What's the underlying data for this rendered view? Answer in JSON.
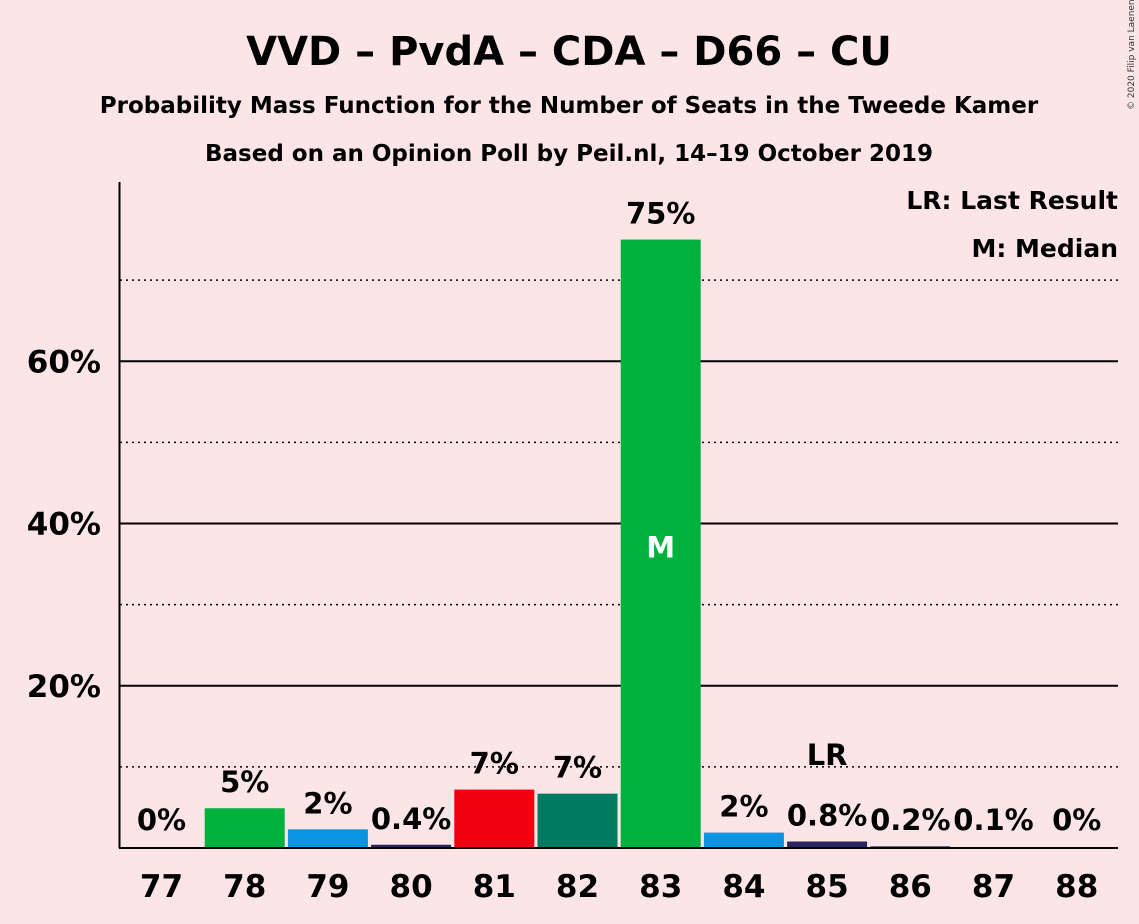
{
  "copyright": "© 2020 Filip van Laenen",
  "chart_data": {
    "type": "bar",
    "title": "VVD – PvdA – CDA – D66 – CU",
    "subtitle": "Probability Mass Function for the Number of Seats in the Tweede Kamer",
    "source_line": "Based on an Opinion Poll by Peil.nl, 14–19 October 2019",
    "categories": [
      "77",
      "78",
      "79",
      "80",
      "81",
      "82",
      "83",
      "84",
      "85",
      "86",
      "87",
      "88"
    ],
    "values": [
      0,
      5,
      2,
      0.4,
      7,
      7,
      75,
      2,
      0.8,
      0.2,
      0.1,
      0
    ],
    "plot_values": [
      0,
      4.9,
      2.3,
      0.4,
      7.2,
      6.7,
      75,
      1.9,
      0.8,
      0.2,
      0.1,
      0
    ],
    "labels": [
      "0%",
      "5%",
      "2%",
      "0.4%",
      "7%",
      "7%",
      "75%",
      "2%",
      "0.8%",
      "0.2%",
      "0.1%",
      "0%"
    ],
    "colors": [
      "#00b13d",
      "#00b13d",
      "#0a95e0",
      "#2a2560",
      "#f1000f",
      "#007b5f",
      "#00b13d",
      "#0a95e0",
      "#2a2560",
      "#2a2560",
      "#2a2560",
      "#2a2560"
    ],
    "ylim": [
      0,
      80
    ],
    "yticks": [
      20,
      40,
      60
    ],
    "ytick_labels": [
      "20%",
      "40%",
      "60%"
    ],
    "minor_gridlines": [
      10,
      30,
      50,
      70
    ],
    "median": {
      "category": "83",
      "label": "M"
    },
    "last_result": {
      "category": "85",
      "label": "LR"
    },
    "legend": [
      "LR: Last Result",
      "M: Median"
    ],
    "legend_placement": "top-right",
    "grid": true
  }
}
